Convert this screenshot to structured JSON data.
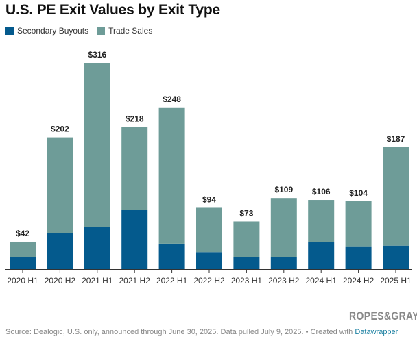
{
  "title": "U.S. PE Exit Values by Exit Type",
  "legend": [
    {
      "label": "Secondary Buyouts",
      "color": "#045a8d"
    },
    {
      "label": "Trade Sales",
      "color": "#6e9c98"
    }
  ],
  "logo_text": "ROPES&GRAY",
  "source": {
    "text": "Source: Dealogic, U.S. only, announced through June 30, 2025. Data pulled July 9, 2025. • Created with ",
    "link": "Datawrapper"
  },
  "chart_data": {
    "type": "bar",
    "stacked": true,
    "title": "U.S. PE Exit Values by Exit Type",
    "xlabel": "",
    "ylabel": "",
    "ylim": [
      0,
      330
    ],
    "grid": false,
    "legend_position": "top-left",
    "categories": [
      "2020 H1",
      "2020 H2",
      "2021 H1",
      "2021 H2",
      "2022 H1",
      "2022 H2",
      "2023 H1",
      "2023 H2",
      "2024 H1",
      "2024 H2",
      "2025 H1"
    ],
    "series": [
      {
        "name": "Secondary Buyouts",
        "color": "#045a8d",
        "values": [
          18,
          55,
          65,
          91,
          39,
          26,
          18,
          18,
          42,
          35,
          36
        ]
      },
      {
        "name": "Trade Sales",
        "color": "#6e9c98",
        "values": [
          24,
          147,
          251,
          127,
          209,
          68,
          55,
          91,
          64,
          69,
          151
        ]
      }
    ],
    "totals": [
      42,
      202,
      316,
      218,
      248,
      94,
      73,
      109,
      106,
      104,
      187
    ],
    "total_labels": [
      "$42",
      "$202",
      "$316",
      "$218",
      "$248",
      "$94",
      "$73",
      "$109",
      "$106",
      "$104",
      "$187"
    ]
  }
}
